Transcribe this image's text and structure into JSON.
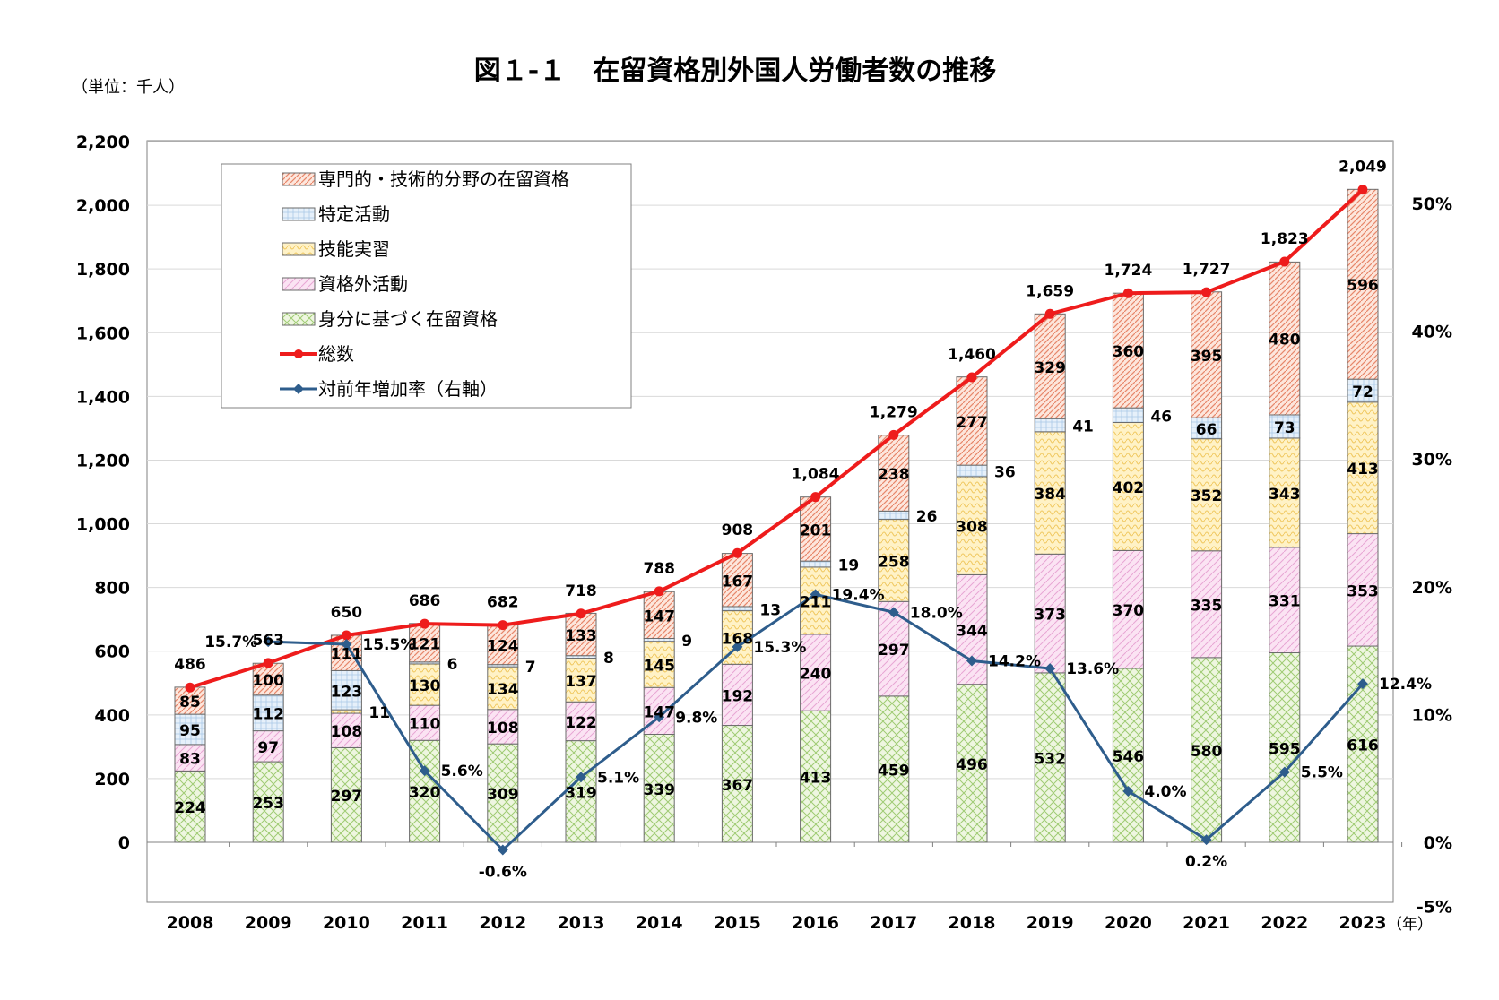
{
  "chart_data": {
    "type": "bar",
    "stacked": true,
    "title": "図１-１　在留資格別外国人労働者数の推移",
    "unit_label": "（単位：千人）",
    "x_unit_label": "（年）",
    "categories": [
      "2008",
      "2009",
      "2010",
      "2011",
      "2012",
      "2013",
      "2014",
      "2015",
      "2016",
      "2017",
      "2018",
      "2019",
      "2020",
      "2021",
      "2022",
      "2023"
    ],
    "series": [
      {
        "name": "身分に基づく在留資格",
        "type": "bar",
        "color": "#c6e0a4",
        "values": [
          224,
          253,
          297,
          320,
          309,
          319,
          339,
          367,
          413,
          459,
          496,
          532,
          546,
          580,
          595,
          616
        ]
      },
      {
        "name": "資格外活動",
        "type": "bar",
        "color": "#f4c6e6",
        "values": [
          83,
          97,
          108,
          110,
          108,
          122,
          147,
          192,
          240,
          297,
          344,
          373,
          370,
          335,
          331,
          353
        ]
      },
      {
        "name": "技能実習",
        "type": "bar",
        "color": "#fde9a8",
        "values": [
          0,
          0,
          11,
          130,
          134,
          137,
          145,
          168,
          211,
          258,
          308,
          384,
          402,
          352,
          343,
          413
        ]
      },
      {
        "name": "特定活動",
        "type": "bar",
        "color": "#d6e6f5",
        "values": [
          95,
          112,
          123,
          6,
          7,
          8,
          9,
          13,
          19,
          26,
          36,
          41,
          46,
          66,
          73,
          72
        ]
      },
      {
        "name": "専門的・技術的分野の在留資格",
        "type": "bar",
        "color": "#f6c3b0",
        "values": [
          85,
          100,
          111,
          121,
          124,
          133,
          147,
          167,
          201,
          238,
          277,
          329,
          360,
          395,
          480,
          596
        ]
      }
    ],
    "bar_labels": [
      [
        "224",
        "83",
        "",
        "95",
        "85"
      ],
      [
        "253",
        "97",
        "",
        "112",
        "100"
      ],
      [
        "297",
        "108",
        "11",
        "123",
        "111"
      ],
      [
        "320",
        "110",
        "130",
        "6",
        "121"
      ],
      [
        "309",
        "108",
        "134",
        "7",
        "124"
      ],
      [
        "319",
        "122",
        "137",
        "8",
        "133"
      ],
      [
        "339",
        "147",
        "145",
        "9",
        "147"
      ],
      [
        "367",
        "192",
        "168",
        "13",
        "167"
      ],
      [
        "413",
        "240",
        "211",
        "19",
        "201"
      ],
      [
        "459",
        "297",
        "258",
        "26",
        "238"
      ],
      [
        "496",
        "344",
        "308",
        "36",
        "277"
      ],
      [
        "532",
        "373",
        "384",
        "41",
        "329"
      ],
      [
        "546",
        "370",
        "402",
        "46",
        "360"
      ],
      [
        "580",
        "335",
        "352",
        "66",
        "395"
      ],
      [
        "595",
        "331",
        "343",
        "73",
        "480"
      ],
      [
        "616",
        "353",
        "413",
        "72",
        "596"
      ]
    ],
    "total": {
      "name": "総数",
      "color": "#ee1c1c",
      "values": [
        486,
        563,
        650,
        686,
        682,
        718,
        788,
        908,
        1084,
        1279,
        1460,
        1659,
        1724,
        1727,
        1823,
        2049
      ],
      "labels": [
        "486",
        "563",
        "650",
        "686",
        "682",
        "718",
        "788",
        "908",
        "1,084",
        "1,279",
        "1,460",
        "1,659",
        "1,724",
        "1,727",
        "1,823",
        "2,049"
      ]
    },
    "growth": {
      "name": "対前年増加率（右軸）",
      "color": "#2e5d8c",
      "axis": "right",
      "values": [
        null,
        15.7,
        15.5,
        5.6,
        -0.6,
        5.1,
        9.8,
        15.3,
        19.4,
        18.0,
        14.2,
        13.6,
        4.0,
        0.2,
        5.5,
        12.4
      ],
      "labels": [
        "",
        "15.7%",
        "15.5%",
        "5.6%",
        "-0.6%",
        "5.1%",
        "9.8%",
        "15.3%",
        "19.4%",
        "18.0%",
        "14.2%",
        "13.6%",
        "4.0%",
        "0.2%",
        "5.5%",
        "12.4%"
      ]
    },
    "y_left": {
      "ylim": [
        -200,
        2200
      ],
      "ticks": [
        0,
        200,
        400,
        600,
        800,
        1000,
        1200,
        1400,
        1600,
        1800,
        2000,
        2200
      ],
      "tick_labels": [
        "0",
        "200",
        "400",
        "600",
        "800",
        "1,000",
        "1,200",
        "1,400",
        "1,600",
        "1,800",
        "2,000",
        "2,200"
      ]
    },
    "y_right": {
      "ylim": [
        -5,
        55
      ],
      "ticks": [
        -5,
        0,
        10,
        20,
        30,
        40,
        50
      ],
      "tick_labels": [
        "-5%",
        "0%",
        "10%",
        "20%",
        "30%",
        "40%",
        "50%"
      ]
    },
    "legend": {
      "placement": "top-left",
      "items": [
        {
          "label": "専門的・技術的分野の在留資格",
          "kind": "box",
          "color": "#f6c3b0"
        },
        {
          "label": "特定活動",
          "kind": "box",
          "color": "#d6e6f5"
        },
        {
          "label": "技能実習",
          "kind": "box",
          "color": "#fde9a8"
        },
        {
          "label": "資格外活動",
          "kind": "box",
          "color": "#f4c6e6"
        },
        {
          "label": "身分に基づく在留資格",
          "kind": "box",
          "color": "#c6e0a4"
        },
        {
          "label": "総数",
          "kind": "line-circle",
          "color": "#ee1c1c"
        },
        {
          "label": "対前年増加率（右軸）",
          "kind": "line-diamond",
          "color": "#2e5d8c"
        }
      ]
    },
    "grid": true
  }
}
